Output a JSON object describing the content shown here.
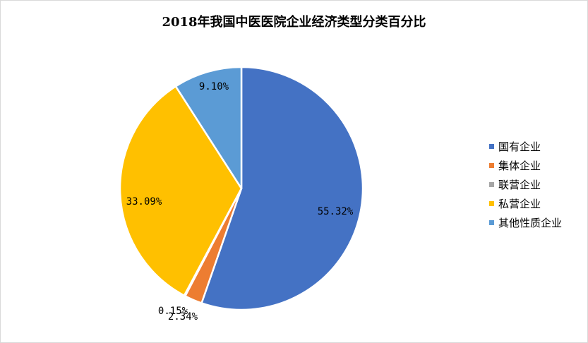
{
  "chart_data": {
    "type": "pie",
    "title": "2018年我国中医医院企业经济类型分类百分比",
    "legend_position": "right",
    "slices": [
      {
        "name": "国有企业",
        "value": 55.32,
        "label": "55.32%",
        "color": "#4472c4"
      },
      {
        "name": "集体企业",
        "value": 2.34,
        "label": "2.34%",
        "color": "#ed7d31"
      },
      {
        "name": "联营企业",
        "value": 0.15,
        "label": "0.15%",
        "color": "#a5a5a5"
      },
      {
        "name": "私营企业",
        "value": 33.09,
        "label": "33.09%",
        "color": "#ffc000"
      },
      {
        "name": "其他性质企业",
        "value": 9.1,
        "label": "9.10%",
        "color": "#5b9bd5"
      }
    ]
  }
}
